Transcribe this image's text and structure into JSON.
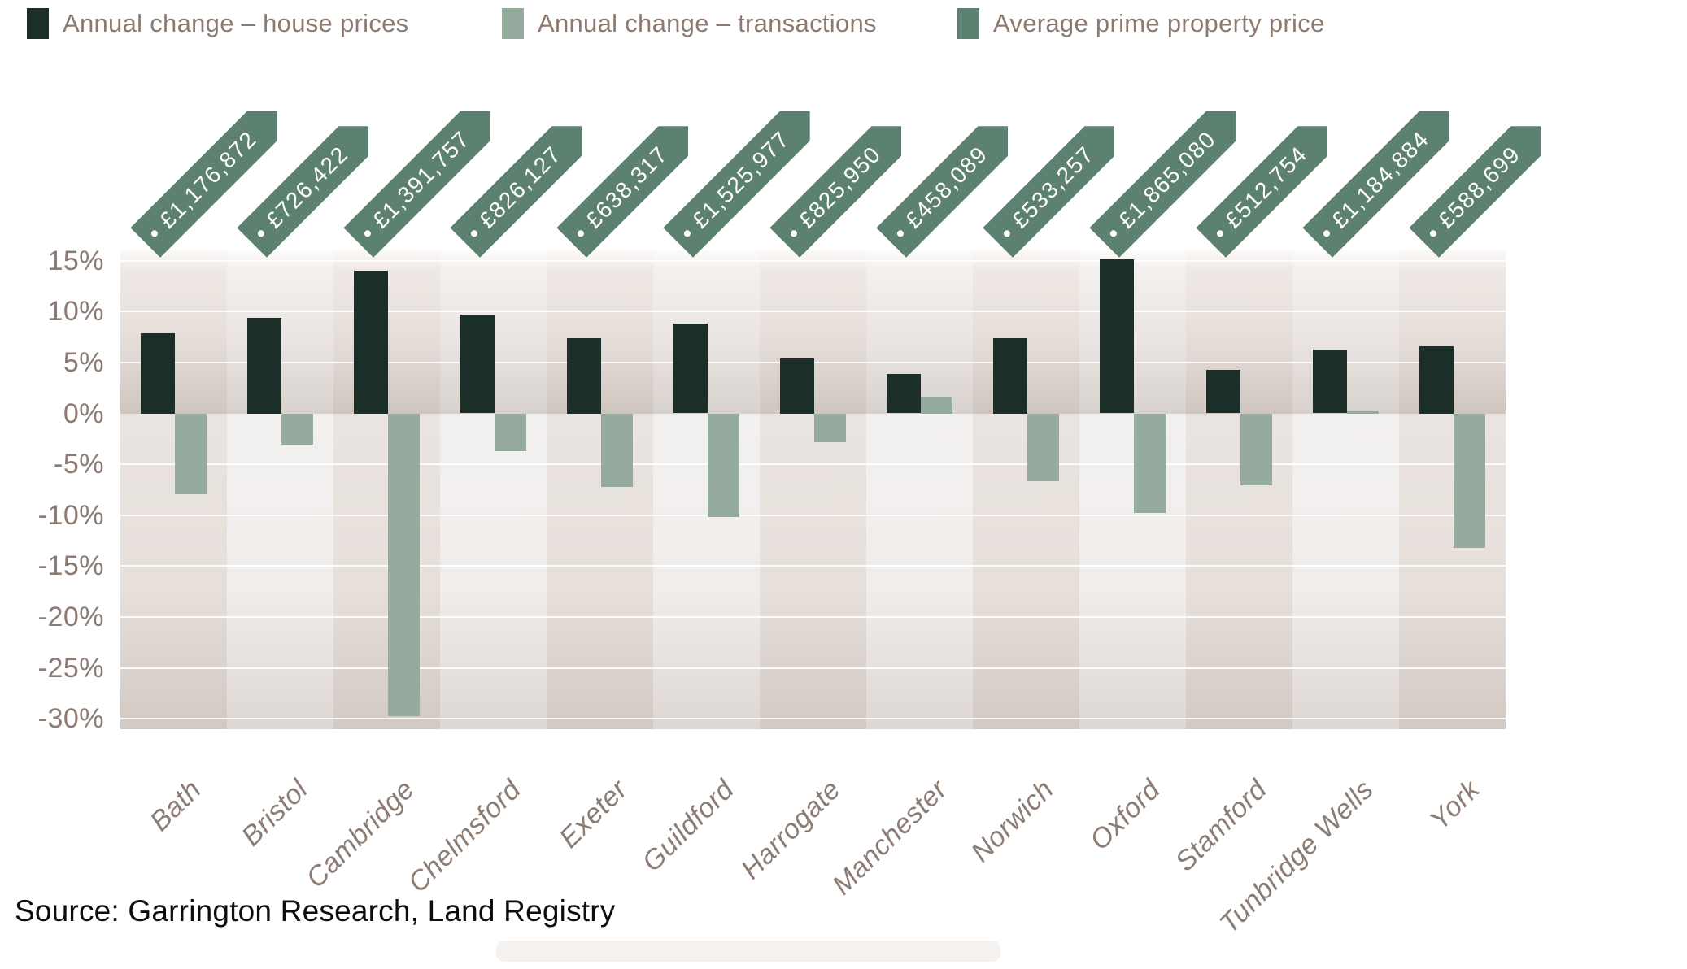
{
  "legend": {
    "items": [
      {
        "label": "Annual change – house prices",
        "color": "#1b2e27"
      },
      {
        "label": "Annual change – transactions",
        "color": "#95ab9d"
      },
      {
        "label": "Average prime property price",
        "color": "#5d8170"
      }
    ]
  },
  "chart_data": {
    "type": "bar",
    "categories": [
      "Bath",
      "Bristol",
      "Cambridge",
      "Chelmsford",
      "Exeter",
      "Guildford",
      "Harrogate",
      "Manchester",
      "Norwich",
      "Oxford",
      "Stamford",
      "Tunbridge Wells",
      "York"
    ],
    "series": [
      {
        "name": "Annual change – house prices",
        "color": "#1b2e27",
        "unit": "%",
        "values": [
          7.9,
          9.4,
          14.0,
          9.7,
          7.4,
          8.8,
          5.4,
          3.9,
          7.4,
          15.1,
          4.3,
          6.3,
          6.6
        ]
      },
      {
        "name": "Annual change – transactions",
        "color": "#95ab9d",
        "unit": "%",
        "values": [
          -7.9,
          -3.1,
          -29.7,
          -3.7,
          -7.2,
          -10.2,
          -2.8,
          1.6,
          -6.7,
          -9.8,
          -7.1,
          0.3,
          -13.2
        ]
      },
      {
        "name": "Average prime property price",
        "color": "#5d8170",
        "unit": "GBP",
        "values_formatted": [
          "£1,176,872",
          "£726,422",
          "£1,391,757",
          "£826,127",
          "£638,317",
          "£1,525,977",
          "£825,950",
          "£458,089",
          "£533,257",
          "£1,865,080",
          "£512,754",
          "£1,184,884",
          "£588,699"
        ]
      }
    ],
    "ylim": [
      -31,
      16
    ],
    "ytick_values": [
      15,
      10,
      5,
      0,
      -5,
      -10,
      -15,
      -20,
      -25,
      -30
    ],
    "ytick_labels": [
      "15%",
      "10%",
      "5%",
      "0%",
      "-5%",
      "-10%",
      "-15%",
      "-20%",
      "-25%",
      "-30%"
    ],
    "grid": true,
    "legend_position": "top-left",
    "title": "",
    "xlabel": "",
    "ylabel": ""
  },
  "source": {
    "text": "Source: Garrington Research, Land Registry"
  }
}
